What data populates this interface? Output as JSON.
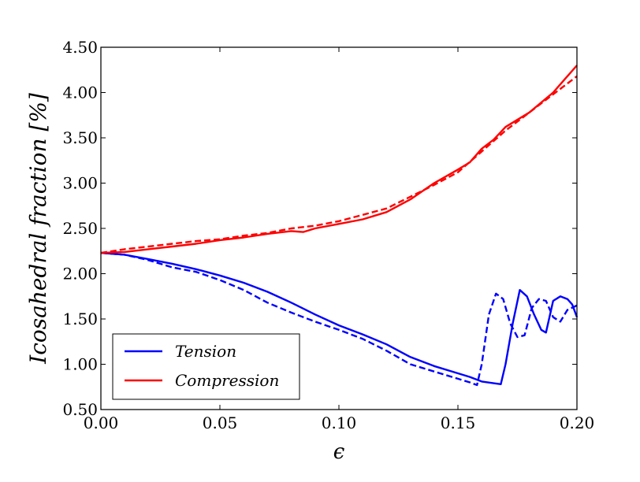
{
  "chart_data": {
    "type": "line",
    "xlabel": "ϵ",
    "ylabel": "Icosahedral fraction [%]",
    "xlim": [
      0.0,
      0.2
    ],
    "ylim": [
      0.5,
      4.5
    ],
    "xticks": [
      "0.00",
      "0.05",
      "0.10",
      "0.15",
      "0.20"
    ],
    "yticks": [
      "0.50",
      "1.00",
      "1.50",
      "2.00",
      "2.50",
      "3.00",
      "3.50",
      "4.00",
      "4.50"
    ],
    "grid": false,
    "legend_position": "lower-left",
    "legend": [
      {
        "label": "Tension",
        "color": "#0000ff"
      },
      {
        "label": "Compression",
        "color": "#ff0000"
      }
    ],
    "series": [
      {
        "name": "Tension",
        "color": "#0000ff",
        "style": "solid",
        "x": [
          0.0,
          0.01,
          0.02,
          0.03,
          0.04,
          0.05,
          0.06,
          0.07,
          0.08,
          0.09,
          0.1,
          0.11,
          0.12,
          0.13,
          0.14,
          0.15,
          0.155,
          0.16,
          0.165,
          0.168,
          0.17,
          0.173,
          0.176,
          0.179,
          0.182,
          0.185,
          0.187,
          0.19,
          0.193,
          0.196,
          0.198,
          0.2
        ],
        "y": [
          2.23,
          2.21,
          2.16,
          2.11,
          2.05,
          1.98,
          1.9,
          1.8,
          1.68,
          1.55,
          1.43,
          1.33,
          1.22,
          1.08,
          0.98,
          0.9,
          0.86,
          0.81,
          0.79,
          0.78,
          1.0,
          1.45,
          1.82,
          1.75,
          1.55,
          1.38,
          1.35,
          1.7,
          1.75,
          1.72,
          1.66,
          1.52
        ]
      },
      {
        "name": "Tension (dashed)",
        "color": "#0000ff",
        "style": "dashed",
        "x": [
          0.0,
          0.01,
          0.02,
          0.03,
          0.04,
          0.05,
          0.06,
          0.07,
          0.08,
          0.09,
          0.1,
          0.11,
          0.12,
          0.13,
          0.14,
          0.15,
          0.155,
          0.158,
          0.16,
          0.163,
          0.166,
          0.169,
          0.172,
          0.175,
          0.178,
          0.181,
          0.184,
          0.187,
          0.19,
          0.193,
          0.196,
          0.2
        ],
        "y": [
          2.23,
          2.21,
          2.15,
          2.07,
          2.02,
          1.93,
          1.82,
          1.68,
          1.57,
          1.47,
          1.38,
          1.28,
          1.15,
          1.0,
          0.92,
          0.84,
          0.8,
          0.77,
          1.0,
          1.55,
          1.78,
          1.72,
          1.45,
          1.3,
          1.32,
          1.62,
          1.72,
          1.7,
          1.52,
          1.47,
          1.6,
          1.65
        ]
      },
      {
        "name": "Compression",
        "color": "#ff0000",
        "style": "solid",
        "x": [
          0.0,
          0.01,
          0.02,
          0.03,
          0.04,
          0.05,
          0.06,
          0.07,
          0.08,
          0.085,
          0.09,
          0.1,
          0.11,
          0.12,
          0.13,
          0.14,
          0.15,
          0.155,
          0.16,
          0.165,
          0.17,
          0.18,
          0.19,
          0.195,
          0.2
        ],
        "y": [
          2.23,
          2.24,
          2.27,
          2.3,
          2.33,
          2.37,
          2.4,
          2.44,
          2.47,
          2.46,
          2.5,
          2.55,
          2.6,
          2.68,
          2.82,
          3.0,
          3.15,
          3.23,
          3.38,
          3.48,
          3.62,
          3.78,
          4.0,
          4.15,
          4.3
        ]
      },
      {
        "name": "Compression (dashed)",
        "color": "#ff0000",
        "style": "dashed",
        "x": [
          0.0,
          0.01,
          0.02,
          0.03,
          0.04,
          0.05,
          0.06,
          0.07,
          0.08,
          0.09,
          0.1,
          0.11,
          0.12,
          0.13,
          0.14,
          0.15,
          0.16,
          0.17,
          0.18,
          0.19,
          0.2
        ],
        "y": [
          2.23,
          2.27,
          2.3,
          2.33,
          2.36,
          2.38,
          2.42,
          2.45,
          2.5,
          2.53,
          2.58,
          2.65,
          2.72,
          2.85,
          2.98,
          3.12,
          3.35,
          3.58,
          3.78,
          3.98,
          4.18
        ]
      }
    ]
  }
}
